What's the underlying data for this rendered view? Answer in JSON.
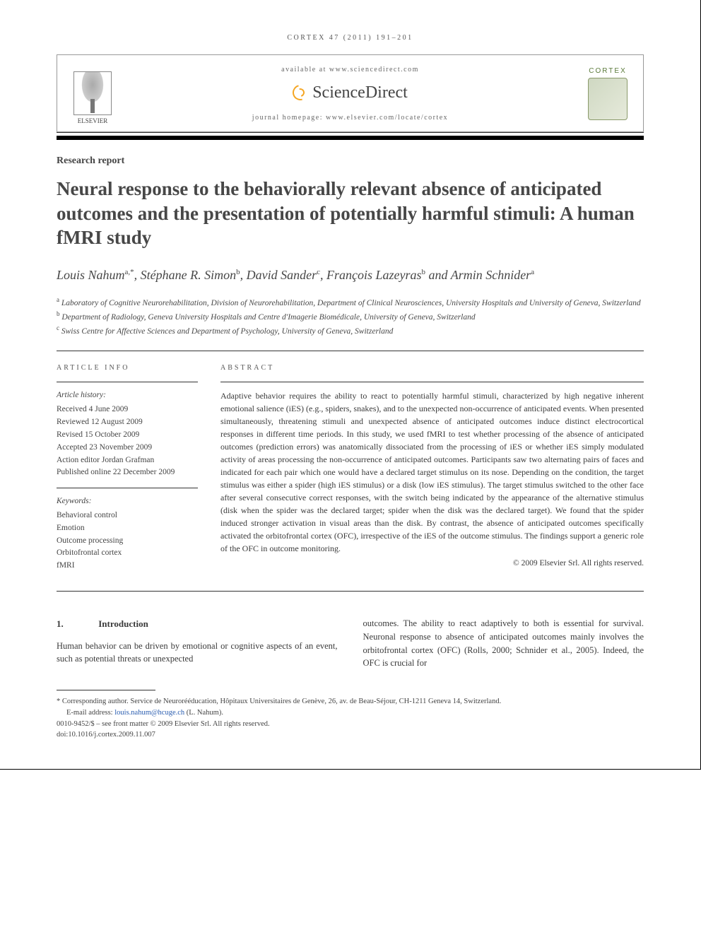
{
  "runningHead": "CORTEX 47 (2011) 191–201",
  "header": {
    "availableAt": "available at www.sciencedirect.com",
    "sdName": "ScienceDirect",
    "homepage": "journal homepage: www.elsevier.com/locate/cortex",
    "elsevierLabel": "ELSEVIER",
    "cortexLabel": "CORTEX"
  },
  "articleType": "Research report",
  "title": "Neural response to the behaviorally relevant absence of anticipated outcomes and the presentation of potentially harmful stimuli: A human fMRI study",
  "authorsHtml": "Louis Nahum<sup>a,*</sup>, Stéphane R. Simon<sup>b</sup>, David Sander<sup>c</sup>, François Lazeyras<sup>b</sup> and Armin Schnider<sup>a</sup>",
  "affiliations": [
    {
      "sup": "a",
      "text": "Laboratory of Cognitive Neurorehabilitation, Division of Neurorehabilitation, Department of Clinical Neurosciences, University Hospitals and University of Geneva, Switzerland"
    },
    {
      "sup": "b",
      "text": "Department of Radiology, Geneva University Hospitals and Centre d'Imagerie Biomédicale, University of Geneva, Switzerland"
    },
    {
      "sup": "c",
      "text": "Swiss Centre for Affective Sciences and Department of Psychology, University of Geneva, Switzerland"
    }
  ],
  "articleInfo": {
    "head": "ARTICLE INFO",
    "historyHead": "Article history:",
    "history": [
      "Received 4 June 2009",
      "Reviewed 12 August 2009",
      "Revised 15 October 2009",
      "Accepted 23 November 2009",
      "Action editor Jordan Grafman",
      "Published online 22 December 2009"
    ],
    "keywordsHead": "Keywords:",
    "keywords": [
      "Behavioral control",
      "Emotion",
      "Outcome processing",
      "Orbitofrontal cortex",
      "fMRI"
    ]
  },
  "abstract": {
    "head": "ABSTRACT",
    "text": "Adaptive behavior requires the ability to react to potentially harmful stimuli, characterized by high negative inherent emotional salience (iES) (e.g., spiders, snakes), and to the unexpected non-occurrence of anticipated events. When presented simultaneously, threatening stimuli and unexpected absence of anticipated outcomes induce distinct electrocortical responses in different time periods. In this study, we used fMRI to test whether processing of the absence of anticipated outcomes (prediction errors) was anatomically dissociated from the processing of iES or whether iES simply modulated activity of areas processing the non-occurrence of anticipated outcomes. Participants saw two alternating pairs of faces and indicated for each pair which one would have a declared target stimulus on its nose. Depending on the condition, the target stimulus was either a spider (high iES stimulus) or a disk (low iES stimulus). The target stimulus switched to the other face after several consecutive correct responses, with the switch being indicated by the appearance of the alternative stimulus (disk when the spider was the declared target; spider when the disk was the declared target). We found that the spider induced stronger activation in visual areas than the disk. By contrast, the absence of anticipated outcomes specifically activated the orbitofrontal cortex (OFC), irrespective of the iES of the outcome stimulus. The findings support a generic role of the OFC in outcome monitoring.",
    "copyright": "© 2009 Elsevier Srl. All rights reserved."
  },
  "sections": {
    "introNum": "1.",
    "introTitle": "Introduction",
    "introColLeft": "Human behavior can be driven by emotional or cognitive aspects of an event, such as potential threats or unexpected",
    "introColRight": "outcomes. The ability to react adaptively to both is essential for survival. Neuronal response to absence of anticipated outcomes mainly involves the orbitofrontal cortex (OFC) (Rolls, 2000; Schnider et al., 2005). Indeed, the OFC is crucial for"
  },
  "footnotes": {
    "corresponding": "* Corresponding author. Service de Neurorééducation, Hôpitaux Universitaires de Genève, 26, av. de Beau-Séjour, CH-1211 Geneva 14, Switzerland.",
    "emailLabel": "E-mail address: ",
    "email": "louis.nahum@hcuge.ch",
    "emailSuffix": " (L. Nahum).",
    "frontMatter": "0010-9452/$ – see front matter © 2009 Elsevier Srl. All rights reserved.",
    "doi": "doi:10.1016/j.cortex.2009.11.007"
  },
  "colors": {
    "text": "#3a3a3a",
    "rule": "#000000",
    "link": "#2a5db0",
    "cortexGreen": "#5a7a3a",
    "sdOrange": "#f5a623"
  },
  "layout": {
    "pageWidth": 992,
    "pageHeight": 1323,
    "infoColWidth": 200,
    "bodyColGap": 36
  }
}
